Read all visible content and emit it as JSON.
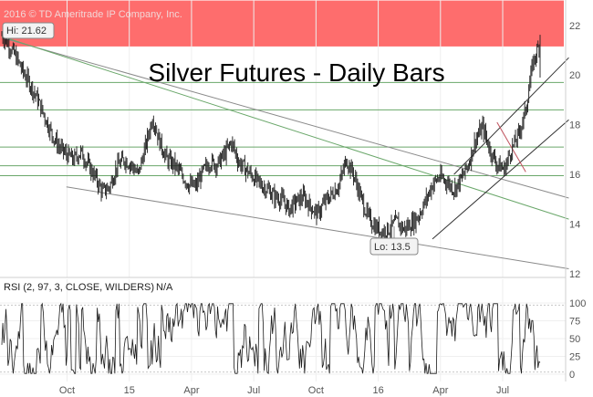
{
  "copyright": "2016 © TD Ameritrade IP Company, Inc.",
  "chart_data": [
    {
      "type": "line",
      "title": "Silver Futures - Daily Bars",
      "ylim": [
        12,
        22.8
      ],
      "y_ticks": [
        12,
        14,
        16,
        18,
        20,
        22
      ],
      "x_tick_labels": [
        "Oct",
        "15",
        "Apr",
        "Jul",
        "Oct",
        "16",
        "Apr",
        "Jul"
      ],
      "annotations": {
        "high": "Hi: 21.62",
        "low": "Lo: 13.5"
      },
      "resistance_zone": [
        21.15,
        23.0
      ],
      "series": [
        {
          "values": [
            21.6,
            21.2,
            20.7,
            20.1,
            19.6,
            19.0,
            18.3,
            17.6,
            17.1,
            16.8,
            16.6,
            16.9,
            16.4,
            15.9,
            15.3,
            15.5,
            16.3,
            16.6,
            16.4,
            16.0,
            17.1,
            18.3,
            17.3,
            16.6,
            16.4,
            16.0,
            15.6,
            15.5,
            16.1,
            16.5,
            16.4,
            16.8,
            17.3,
            16.5,
            16.2,
            15.9,
            15.6,
            15.4,
            15.1,
            15.0,
            14.6,
            14.9,
            15.1,
            14.7,
            14.4,
            14.9,
            15.2,
            15.6,
            16.6,
            16.0,
            15.1,
            14.3,
            13.9,
            13.7,
            13.8,
            14.1,
            13.8,
            14.0,
            14.3,
            14.9,
            15.6,
            15.9,
            15.7,
            15.4,
            15.8,
            16.4,
            17.4,
            17.9,
            17.0,
            16.4,
            16.2,
            17.0,
            17.6,
            18.6,
            20.5,
            21.3
          ]
        }
      ],
      "horizontal_lines": [
        19.7,
        18.6,
        17.1,
        16.35,
        15.95
      ],
      "trend_lines": [
        {
          "color": "#8a8a8a",
          "points": [
            [
              0,
              21.5
            ],
            [
              79,
              15.05
            ]
          ]
        },
        {
          "color": "#8a8a8a",
          "points": [
            [
              9,
              15.5
            ],
            [
              79,
              12.2
            ]
          ]
        },
        {
          "color": "#6aa76a",
          "points": [
            [
              0,
              21.55
            ],
            [
              79,
              14.2
            ]
          ]
        },
        {
          "color": "#333333",
          "points": [
            [
              63,
              16.0
            ],
            [
              79,
              20.7
            ]
          ]
        },
        {
          "color": "#333333",
          "points": [
            [
              60,
              13.4
            ],
            [
              79,
              18.2
            ]
          ]
        },
        {
          "color": "#c0505c",
          "points": [
            [
              69,
              18.1
            ],
            [
              73,
              16.1
            ]
          ]
        }
      ]
    },
    {
      "type": "line",
      "label": "RSI (2, 97, 3, CLOSE, WILDERS)",
      "value_label": "N/A",
      "ylim": [
        0,
        100
      ],
      "y_ticks": [
        0,
        25,
        50,
        75,
        100
      ],
      "overbought": 97,
      "oversold": 3
    }
  ],
  "colors": {
    "zone": "#fe6d6d",
    "price": "#1a1a1a",
    "channel_gray": "#8a8a8a",
    "support_green": "#6aa76a",
    "channel_dark": "#333333",
    "wedge_red": "#c0505c",
    "rsi": "#1a1a1a",
    "rsi_high": "#d64040",
    "rsi_low": "#2a9a2a"
  }
}
